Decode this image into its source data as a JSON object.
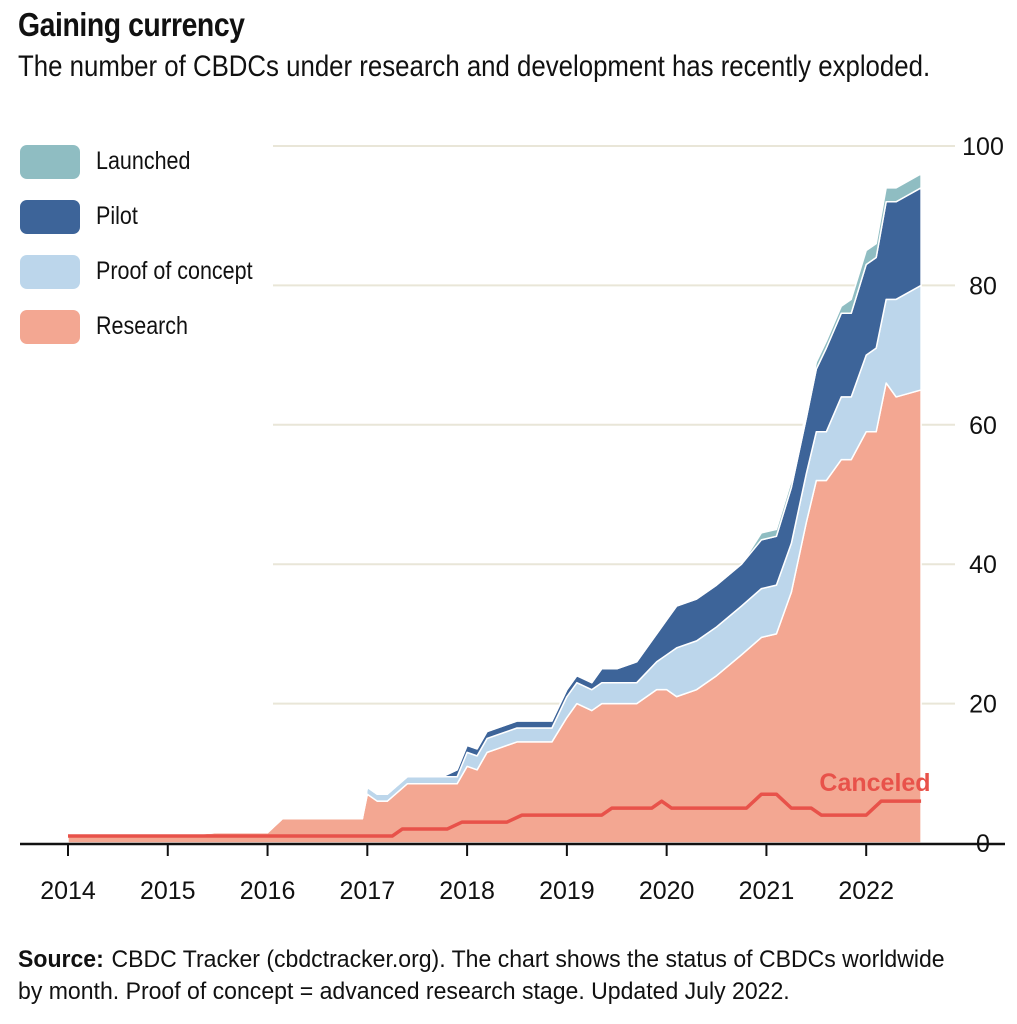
{
  "header": {
    "title": "Gaining currency",
    "subtitle": "The number of CBDCs under research and development has recently exploded."
  },
  "legend": [
    {
      "label": "Launched",
      "color": "#8fbdc2"
    },
    {
      "label": "Pilot",
      "color": "#3d6499"
    },
    {
      "label": "Proof of concept",
      "color": "#bcd6eb"
    },
    {
      "label": "Research",
      "color": "#f3a792"
    }
  ],
  "footer": {
    "source_label": "Source:",
    "source_text": "CBDC Tracker (cbdctracker.org). The chart shows the status of CBDCs worldwide by month. Proof of concept = advanced research stage. Updated July 2022."
  },
  "chart_data": {
    "type": "area",
    "stacked": true,
    "title": "Gaining currency",
    "subtitle": "The number of CBDCs under research and development has recently exploded.",
    "x_ticks": [
      "2014",
      "2015",
      "2016",
      "2017",
      "2018",
      "2019",
      "2020",
      "2021",
      "2022"
    ],
    "y_ticks": [
      0,
      20,
      40,
      60,
      80,
      100
    ],
    "ylim": [
      0,
      100
    ],
    "xlim": [
      2014,
      2022.9
    ],
    "y_axis_position": "right",
    "grid": true,
    "legend_position": "top-left",
    "x": [
      2014.0,
      2014.5,
      2015.0,
      2015.5,
      2016.0,
      2016.15,
      2016.5,
      2016.95,
      2017.0,
      2017.1,
      2017.2,
      2017.4,
      2017.6,
      2017.75,
      2017.9,
      2018.0,
      2018.1,
      2018.2,
      2018.3,
      2018.5,
      2018.6,
      2018.85,
      2019.0,
      2019.1,
      2019.25,
      2019.35,
      2019.5,
      2019.7,
      2019.9,
      2020.0,
      2020.1,
      2020.3,
      2020.5,
      2020.75,
      2020.95,
      2021.1,
      2021.25,
      2021.4,
      2021.5,
      2021.6,
      2021.75,
      2021.85,
      2022.0,
      2022.1,
      2022.2,
      2022.3,
      2022.55
    ],
    "series": [
      {
        "name": "Research",
        "color": "#f3a792",
        "values": [
          1,
          1,
          1,
          1.5,
          1.5,
          3.5,
          3.5,
          3.5,
          7,
          6,
          6,
          8.5,
          8.5,
          8.5,
          8.5,
          11,
          10.5,
          13,
          13.5,
          14.5,
          14.5,
          14.5,
          18,
          20,
          19,
          20,
          20,
          20,
          22,
          22,
          21,
          22,
          24,
          27,
          29.5,
          30,
          36,
          46,
          52,
          52,
          55,
          55,
          59,
          59,
          66,
          64,
          65
        ]
      },
      {
        "name": "Proof of concept",
        "color": "#bcd6eb",
        "values": [
          0,
          0,
          0,
          0,
          0,
          0,
          0,
          0,
          1,
          1,
          1,
          1,
          1,
          1,
          1,
          2,
          2,
          2,
          2,
          2,
          2,
          2,
          3,
          3,
          3,
          3,
          3,
          3,
          4,
          5,
          7,
          7,
          7,
          7,
          7,
          7,
          7,
          7,
          7,
          7,
          9,
          9,
          11,
          12,
          12,
          14,
          15
        ]
      },
      {
        "name": "Pilot",
        "color": "#3d6499",
        "values": [
          0,
          0,
          0,
          0,
          0,
          0,
          0,
          0,
          0,
          0,
          0,
          0,
          0,
          0,
          1,
          1,
          1,
          1,
          1,
          1,
          1,
          1,
          1,
          1,
          1,
          2,
          2,
          3,
          4,
          5,
          6,
          6,
          6,
          6,
          7,
          7,
          8,
          8,
          9,
          12,
          12,
          12,
          13,
          13,
          14,
          14,
          14
        ]
      },
      {
        "name": "Launched",
        "color": "#8fbdc2",
        "values": [
          0,
          0,
          0,
          0,
          0,
          0,
          0,
          0,
          0,
          0,
          0,
          0,
          0,
          0,
          0,
          0,
          0,
          0,
          0,
          0,
          0,
          0,
          0,
          0,
          0,
          0,
          0,
          0,
          0,
          0,
          0,
          0,
          0,
          0,
          1,
          1,
          1,
          1,
          1,
          1,
          1,
          2,
          2,
          2,
          2,
          2,
          2
        ]
      }
    ],
    "overlay_line": {
      "name": "Canceled",
      "label": "Canceled",
      "color": "#e8524a",
      "x": [
        2014.0,
        2017.25,
        2017.35,
        2017.8,
        2017.95,
        2018.4,
        2018.55,
        2019.35,
        2019.45,
        2019.85,
        2019.95,
        2020.05,
        2020.8,
        2020.95,
        2021.1,
        2021.25,
        2021.45,
        2021.55,
        2022.0,
        2022.15,
        2022.55
      ],
      "values": [
        1,
        1,
        2,
        2,
        3,
        3,
        4,
        4,
        5,
        5,
        6,
        5,
        5,
        7,
        7,
        5,
        5,
        4,
        4,
        6,
        6
      ]
    }
  }
}
